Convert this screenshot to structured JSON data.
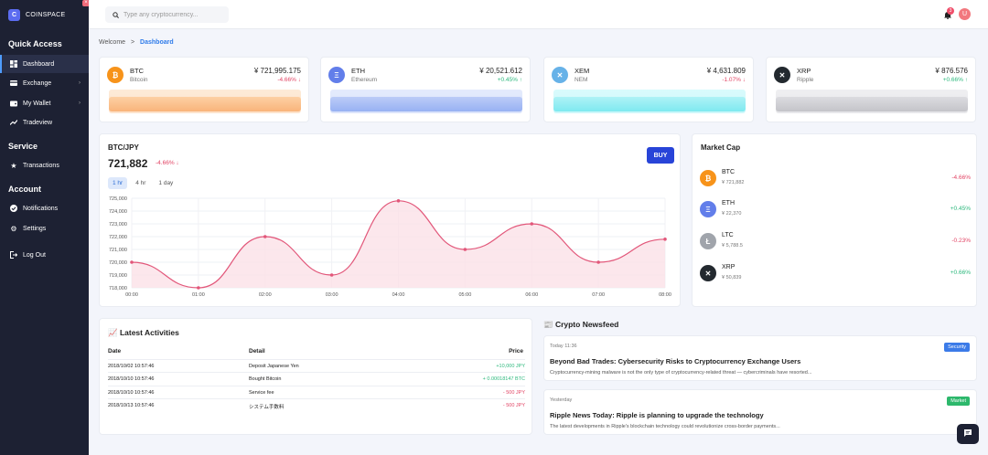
{
  "brand": {
    "logo_letter": "C",
    "name": "COINSPACE"
  },
  "sidebar": {
    "quick_access": "Quick Access",
    "service": "Service",
    "account": "Account",
    "items": [
      {
        "label": "Dashboard"
      },
      {
        "label": "Exchange"
      },
      {
        "label": "My Wallet"
      },
      {
        "label": "Tradeview"
      },
      {
        "label": "Transactions"
      },
      {
        "label": "Notifications"
      },
      {
        "label": "Settings"
      },
      {
        "label": "Log Out"
      }
    ]
  },
  "search": {
    "placeholder": "Type any cryptocurrency..."
  },
  "header": {
    "notification_count": "3",
    "avatar_letter": "U"
  },
  "breadcrumb": {
    "home": "Welcome",
    "sep": ">",
    "current": "Dashboard"
  },
  "cards": [
    {
      "symbol": "BTC",
      "name": "Bitcoin",
      "price": "¥ 721,995.175",
      "change": "-4.66% ↓",
      "color": "#f7931a"
    },
    {
      "symbol": "ETH",
      "name": "Ethereum",
      "price": "¥ 20,521.612",
      "change": "+0.45% ↑",
      "color": "#627eea"
    },
    {
      "symbol": "XEM",
      "name": "NEM",
      "price": "¥ 4,631.809",
      "change": "-1.07% ↓",
      "color": "#67b2e8"
    },
    {
      "symbol": "XRP",
      "name": "Ripple",
      "price": "¥ 876.576",
      "change": "+0.66% ↑",
      "color": "#23292f"
    }
  ],
  "chart_panel": {
    "title": "BTC/JPY",
    "value": "721,882",
    "change": "-4.66% ↓",
    "buy_label": "BUY",
    "tabs": [
      "1 hr",
      "4 hr",
      "1 day"
    ]
  },
  "chart_data": {
    "type": "area",
    "title": "BTC/JPY",
    "x": [
      "00:00",
      "01:00",
      "02:00",
      "03:00",
      "04:00",
      "05:00",
      "06:00",
      "07:00",
      "08:00"
    ],
    "values": [
      720000,
      718000,
      722000,
      719000,
      724800,
      721000,
      723000,
      720000,
      721800
    ],
    "ylim": [
      718000,
      725000
    ],
    "yticks": [
      "725,000",
      "724,000",
      "723,000",
      "722,000",
      "721,000",
      "720,000",
      "719,000",
      "718,000"
    ],
    "grid": true,
    "colors": {
      "line": "#e2577a",
      "fill": "#fbe1e7"
    }
  },
  "market_cap": {
    "title": "Market Cap",
    "rows": [
      {
        "symbol": "BTC",
        "price": "¥ 721,882",
        "change": "-4.66%",
        "color": "#f7931a",
        "icon": "₿"
      },
      {
        "symbol": "ETH",
        "price": "¥ 22,370",
        "change": "+0.45%",
        "color": "#627eea",
        "icon": "Ξ"
      },
      {
        "symbol": "LTC",
        "price": "¥ 5,788.5",
        "change": "-0.23%",
        "color": "#a0a4ab",
        "icon": "Ł"
      },
      {
        "symbol": "XRP",
        "price": "¥ 50,839",
        "change": "+0.66%",
        "color": "#23292f",
        "icon": "✕"
      }
    ]
  },
  "activities": {
    "title": "📈 Latest Activities",
    "headers": {
      "date": "Date",
      "detail": "Detail",
      "price": "Price"
    },
    "rows": [
      {
        "date": "2018/10/02 10:57:46",
        "detail": "Deposit Japanese Yen",
        "price": "+10,000 JPY"
      },
      {
        "date": "2018/10/10 10:57:46",
        "detail": "Bought Bitcoin",
        "price": "+ 0.00018147 BTC"
      },
      {
        "date": "2018/10/10 10:57:46",
        "detail": "Service fee",
        "price": "- 500 JPY"
      },
      {
        "date": "2018/10/13 10:57:46",
        "detail": "システム手数料",
        "price": "- 500 JPY"
      }
    ]
  },
  "newsfeed": {
    "title": "📰 Crypto Newsfeed",
    "items": [
      {
        "date": "Today 11:36",
        "headline": "Beyond Bad Trades: Cybersecurity Risks to Cryptocurrency Exchange Users",
        "excerpt": "Cryptocurrency-mining malware is not the only type of cryptocurrency-related threat — cybercriminals have resorted...",
        "tag": "Security",
        "tag_color": "#3b7be8"
      },
      {
        "date": "Yesterday",
        "headline": "Ripple News Today: Ripple is planning to upgrade the technology",
        "excerpt": "The latest developments in Ripple's blockchain technology could revolutionize cross-border payments...",
        "tag": "Market",
        "tag_color": "#2db86c"
      }
    ]
  }
}
